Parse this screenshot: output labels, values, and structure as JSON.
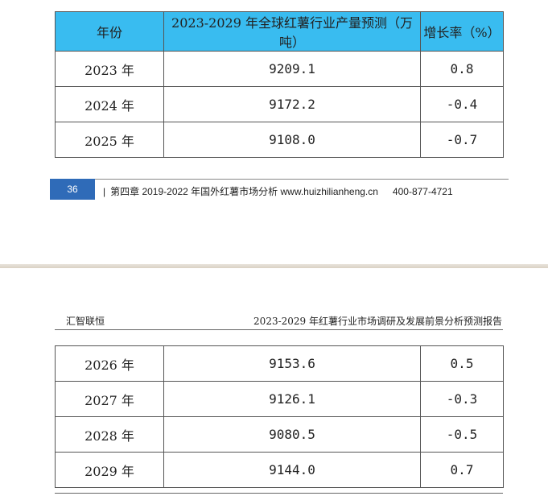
{
  "table_top": {
    "headers": [
      "年份",
      "2023-2029 年全球红薯行业产量预测（万吨）",
      "增长率（%）"
    ],
    "rows": [
      {
        "year": "2023 年",
        "value": "9209.1",
        "growth": "0.8"
      },
      {
        "year": "2024 年",
        "value": "9172.2",
        "growth": "-0.4"
      },
      {
        "year": "2025 年",
        "value": "9108.0",
        "growth": "-0.7"
      }
    ]
  },
  "footer": {
    "page_number": "36",
    "separator": "|",
    "text": "第四章 2019-2022 年国外红薯市场分析 www.huizhilianheng.cn",
    "phone": "400-877-4721"
  },
  "header": {
    "left": "汇智联恒",
    "right": "2023-2029 年红薯行业市场调研及发展前景分析预测报告"
  },
  "table_bottom": {
    "rows": [
      {
        "year": "2026 年",
        "value": "9153.6",
        "growth": "0.5"
      },
      {
        "year": "2027 年",
        "value": "9126.1",
        "growth": "-0.3"
      },
      {
        "year": "2028 年",
        "value": "9080.5",
        "growth": "-0.5"
      },
      {
        "year": "2029 年",
        "value": "9144.0",
        "growth": "0.7"
      }
    ]
  },
  "colors": {
    "header_fill": "#39bcf0",
    "page_badge": "#2f6bb8"
  }
}
